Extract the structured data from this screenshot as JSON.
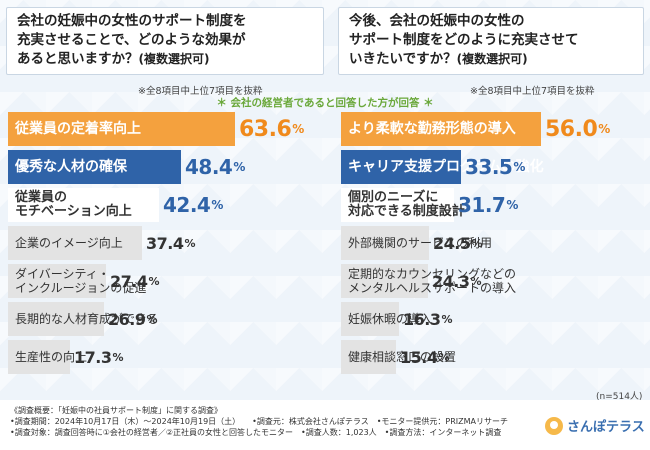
{
  "questions": {
    "left": {
      "lines": [
        "会社の妊娠中の女性のサポート制度を",
        "充実させることで、どのような効果が",
        "あると思いますか？"
      ],
      "suffix": "(複数選択可)"
    },
    "right": {
      "lines": [
        "今後、会社の妊娠中の女性の",
        "サポート制度をどのように充実させて",
        "いきたいですか？"
      ],
      "suffix": "(複数選択可)"
    }
  },
  "notes": {
    "left_top8": "※全8項目中上位7項目を抜粋",
    "right_top8": "※全8項目中上位7項目を抜粋",
    "center": "＊ 会社の経営者であると回答した方が回答 ＊",
    "n": "(n=514人)"
  },
  "chart_data": [
    {
      "type": "bar",
      "categories": [
        "従業員の定着率向上",
        "優秀な人材の確保",
        "従業員のモチベーション向上",
        "企業のイメージ向上",
        "ダイバーシティ・インクルージョンの促進",
        "長期的な人材育成ができる",
        "生産性の向上"
      ],
      "category_lines": [
        [
          "従業員の定着率向上"
        ],
        [
          "優秀な人材の確保"
        ],
        [
          "従業員の",
          "モチベーション向上"
        ],
        [
          "企業のイメージ向上"
        ],
        [
          "ダイバーシティ・",
          "インクルージョンの促進"
        ],
        [
          "長期的な人材育成ができる"
        ],
        [
          "生産性の向上"
        ]
      ],
      "values": [
        63.6,
        48.4,
        42.4,
        37.4,
        27.4,
        26.9,
        17.3
      ],
      "unit": "%",
      "styles": [
        "orange",
        "blue",
        "white",
        "gray",
        "gray",
        "gray",
        "gray"
      ]
    },
    {
      "type": "bar",
      "categories": [
        "より柔軟な勤務形態の導入",
        "キャリア支援プログラムの強化",
        "個別のニーズに対応できる制度設計",
        "外部機関のサービスの利用",
        "定期的なカウンセリングなどのメンタルヘルスサポートの導入",
        "妊娠休暇の導入",
        "健康相談窓口の設置"
      ],
      "category_lines": [
        [
          "より柔軟な勤務形態の導入"
        ],
        [
          "キャリア支援プログラムの強化"
        ],
        [
          "個別のニーズに",
          "対応できる制度設計"
        ],
        [
          "外部機関のサービスの利用"
        ],
        [
          "定期的なカウンセリングなどの",
          "メンタルヘルスサポートの導入"
        ],
        [
          "妊娠休暇の導入"
        ],
        [
          "健康相談窓口の設置"
        ]
      ],
      "values": [
        56.0,
        33.5,
        31.7,
        24.5,
        24.3,
        16.3,
        15.4
      ],
      "unit": "%",
      "styles": [
        "orange",
        "blue",
        "white",
        "gray",
        "gray",
        "gray",
        "gray"
      ]
    }
  ],
  "footer": {
    "lines": [
      "《調査概要：「妊娠中の社員サポート制度」に関する調査》",
      "•調査期間：2024年10月17日（木）～2024年10月19日（土）　　•調査元：株式会社さんぽテラス　•モニター提供元：PRIZMAリサーチ",
      "•調査対象：調査回答時に①会社の経営者／②正社員の女性と回答したモニター　•調査人数：1,023人　•調査方法：インターネット調査"
    ]
  },
  "logo": {
    "text": "さんぽテラス"
  }
}
